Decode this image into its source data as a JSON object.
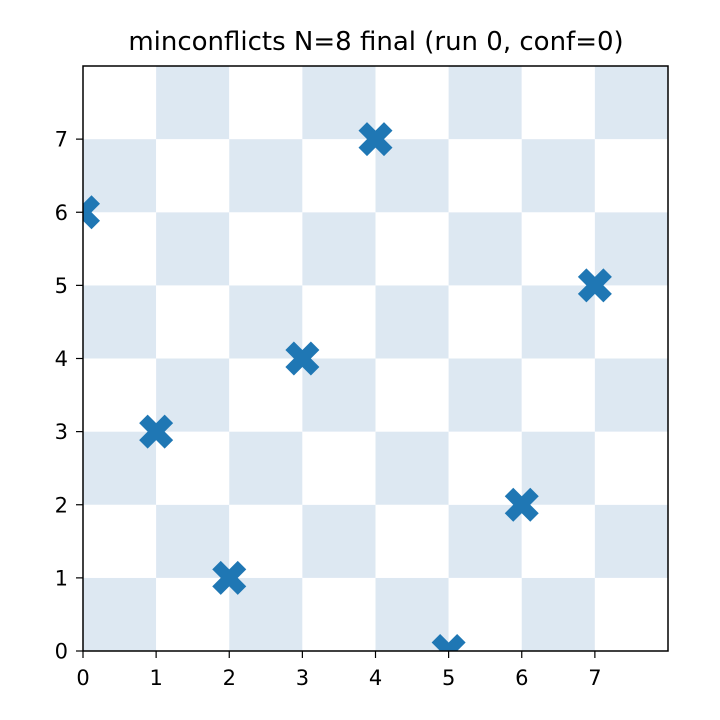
{
  "chart_data": {
    "type": "scatter",
    "title": "minconflicts N=8 final (run 0, conf=0)",
    "xlabel": "",
    "ylabel": "",
    "xlim": [
      0,
      8
    ],
    "ylim": [
      0,
      8
    ],
    "xticks": [
      "0",
      "1",
      "2",
      "3",
      "4",
      "5",
      "6",
      "7"
    ],
    "yticks": [
      "0",
      "1",
      "2",
      "3",
      "4",
      "5",
      "6",
      "7"
    ],
    "board_size": 8,
    "board_colors": {
      "light": "#ffffff",
      "dark": "#dde8f2"
    },
    "marker": {
      "shape": "x-filled",
      "color": "#1f77b4"
    },
    "points": [
      {
        "x": 0,
        "y": 6
      },
      {
        "x": 1,
        "y": 3
      },
      {
        "x": 2,
        "y": 1
      },
      {
        "x": 3,
        "y": 4
      },
      {
        "x": 4,
        "y": 7
      },
      {
        "x": 5,
        "y": 0
      },
      {
        "x": 6,
        "y": 2
      },
      {
        "x": 7,
        "y": 5
      }
    ],
    "grid": false,
    "legend": "none"
  }
}
